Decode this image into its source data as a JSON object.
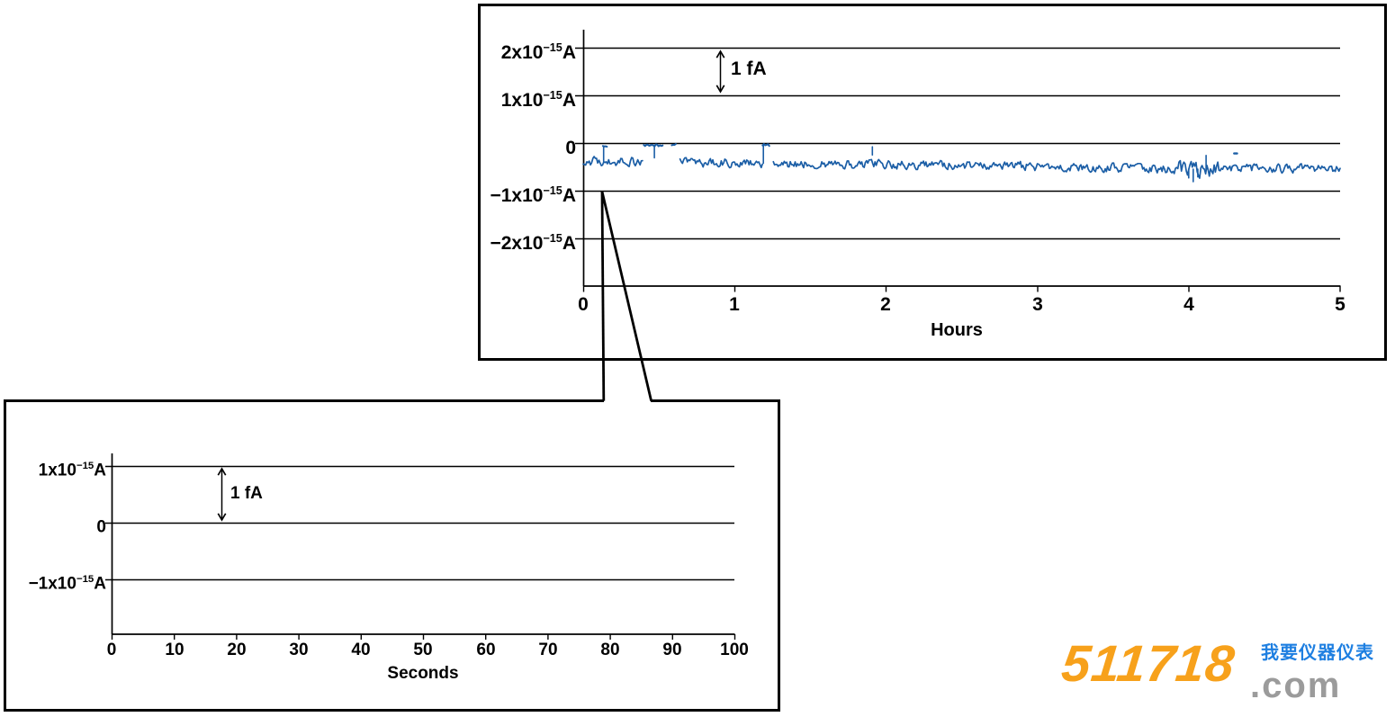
{
  "page": {
    "background": "#ffffff"
  },
  "chart_data": {
    "type": "line",
    "hours_chart": {
      "xlabel": "Hours",
      "x_range_hours": [
        0,
        5
      ],
      "x_ticks": [
        "0",
        "1",
        "2",
        "3",
        "4",
        "5"
      ],
      "y_ticks": [
        {
          "coef": "2x10",
          "exp": "−15",
          "unit": "A",
          "fA": 2
        },
        {
          "coef": "1x10",
          "exp": "−15",
          "unit": "A",
          "fA": 1
        },
        {
          "coef": "0",
          "exp": "",
          "unit": "",
          "fA": 0
        },
        {
          "coef": "−1x10",
          "exp": "−15",
          "unit": "A",
          "fA": -1
        },
        {
          "coef": "−2x10",
          "exp": "−15",
          "unit": "A",
          "fA": -2
        }
      ],
      "y_range_fA": [
        -3,
        2.4
      ],
      "grid": true,
      "scale_annotation": {
        "label": "1 fA",
        "from_fA": 2,
        "to_fA": 1
      },
      "series": {
        "color": "#1B5EA6",
        "baseline_fA": [
          [
            0,
            -0.37
          ],
          [
            1,
            -0.41
          ],
          [
            2,
            -0.44
          ],
          [
            3,
            -0.48
          ],
          [
            4,
            -0.54
          ],
          [
            4.6,
            -0.52
          ],
          [
            5,
            -0.53
          ]
        ],
        "noise_halfband_fA": 0.05,
        "gaps_hours": [
          [
            0.4,
            0.64
          ],
          [
            1.185,
            1.25
          ]
        ],
        "plateaus": [
          {
            "from": 0.13,
            "to": 0.165,
            "fA": -0.05
          },
          {
            "from": 0.4,
            "to": 0.525,
            "fA": -0.04
          },
          {
            "from": 0.585,
            "to": 0.615,
            "fA": -0.03
          },
          {
            "from": 1.185,
            "to": 1.23,
            "fA": -0.03
          }
        ],
        "vspikes": [
          {
            "x": 0.135,
            "from_fA": null,
            "to_fA": -0.05
          },
          {
            "x": 0.47,
            "from_fA": -0.04,
            "to_fA": -0.3
          },
          {
            "x": 1.19,
            "from_fA": null,
            "to_fA": -0.03
          },
          {
            "x": 1.91,
            "from_fA": -0.07,
            "to_fA": -0.24
          },
          {
            "x": 4.0,
            "from_fA": null,
            "to_fA": -0.72
          },
          {
            "x": 4.03,
            "from_fA": null,
            "to_fA": -0.8
          },
          {
            "x": 4.06,
            "from_fA": null,
            "to_fA": -0.7
          },
          {
            "x": 4.115,
            "from_fA": null,
            "to_fA": -0.25
          }
        ],
        "dots": [
          {
            "x": 4.31,
            "fA": -0.21
          }
        ]
      }
    },
    "seconds_chart": {
      "xlabel": "Seconds",
      "x_range_seconds": [
        0,
        100
      ],
      "x_ticks": [
        "0",
        "10",
        "20",
        "30",
        "40",
        "50",
        "60",
        "70",
        "80",
        "90",
        "100"
      ],
      "y_ticks": [
        {
          "coef": "1x10",
          "exp": "−15",
          "unit": "A",
          "fA": 1
        },
        {
          "coef": "0",
          "exp": "",
          "unit": "",
          "fA": 0
        },
        {
          "coef": "−1x10",
          "exp": "−15",
          "unit": "A",
          "fA": -1
        }
      ],
      "y_range_fA": [
        -2,
        1.25
      ],
      "grid": true,
      "scale_annotation": {
        "label": "1 fA",
        "from_fA": 1,
        "to_fA": 0
      },
      "series": null
    }
  },
  "watermark": {
    "number": "511718",
    "suffix": ".com",
    "tagline": "我要仪器仪表",
    "number_color": "#F7A11B",
    "suffix_color": "#9B9B9B",
    "tagline_color": "#1E7FE1"
  }
}
